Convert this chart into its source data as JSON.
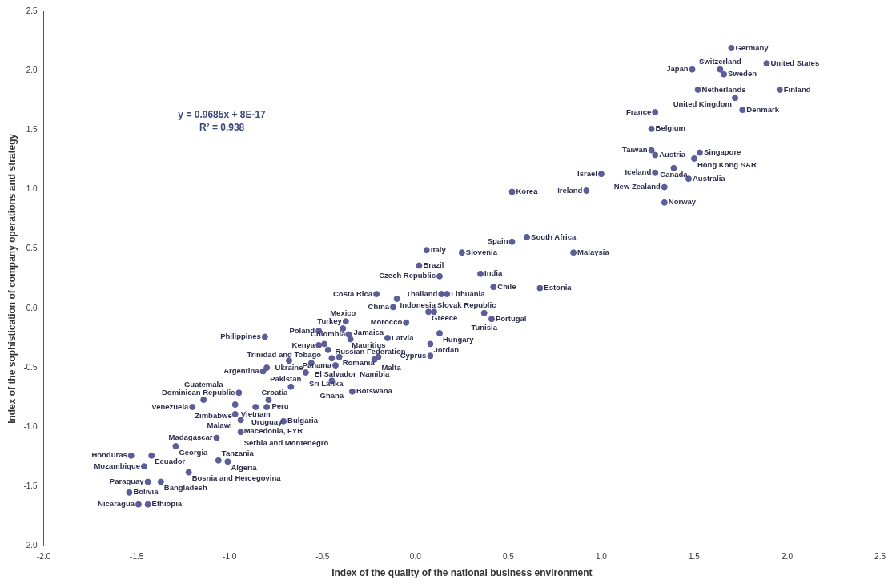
{
  "chart_data": {
    "type": "scatter",
    "xlabel": "Index of the quality of the national business environment",
    "ylabel": "Index of the sophistication of company operations and strategy",
    "xlim": [
      -2,
      2.5
    ],
    "xticks": [
      {
        "value": -2,
        "label": "-2.0"
      },
      {
        "value": -1.5,
        "label": "-1.5"
      },
      {
        "value": -1,
        "label": "-1.0"
      },
      {
        "value": -0.5,
        "label": "-0.5"
      },
      {
        "value": 0,
        "label": "0.0"
      },
      {
        "value": 0.5,
        "label": "0.5"
      },
      {
        "value": 1,
        "label": "1.0"
      },
      {
        "value": 1.5,
        "label": "1.5"
      },
      {
        "value": 2,
        "label": "2.0"
      },
      {
        "value": 2.5,
        "label": "2.5"
      }
    ],
    "ylim": [
      -2,
      2.5
    ],
    "yticks": [
      {
        "value": -2,
        "label": "-2.0"
      },
      {
        "value": -1.5,
        "label": "-1.5"
      },
      {
        "value": -1,
        "label": "-1.0"
      },
      {
        "value": -0.5,
        "label": "-0.5"
      },
      {
        "value": 0,
        "label": "0.0"
      },
      {
        "value": 0.5,
        "label": "0.5"
      },
      {
        "value": 1,
        "label": "1.0"
      },
      {
        "value": 1.5,
        "label": "1.5"
      },
      {
        "value": 2,
        "label": "2.0"
      },
      {
        "value": 2.5,
        "label": "2.5"
      }
    ],
    "grid": false,
    "legend": false,
    "marker": "circle",
    "series": [
      {
        "color": "#5b5e99",
        "x": [
          1.7,
          1.49,
          1.64,
          1.66,
          1.89,
          1.52,
          1.96,
          1.72,
          1.76,
          1.29,
          1.27,
          1.27,
          1.29,
          1.53,
          1.5,
          1.29,
          1.39,
          1.47,
          1.34,
          1.34,
          1.0,
          0.92,
          0.52,
          0.6,
          0.52,
          0.85,
          0.06,
          0.25,
          0.02,
          0.13,
          0.35,
          0.42,
          0.67,
          0.14,
          0.17,
          -0.21,
          -0.1,
          -0.12,
          0.07,
          0.1,
          0.37,
          0.41,
          -0.05,
          -0.375,
          -0.39,
          -0.36,
          -0.35,
          -0.52,
          -0.15,
          0.13,
          0.08,
          0.08,
          -0.81,
          -0.52,
          -0.49,
          -0.47,
          -0.56,
          -0.68,
          -0.8,
          -0.82,
          -0.41,
          -0.2,
          -0.22,
          -0.45,
          -0.43,
          -0.59,
          -0.45,
          -0.67,
          -0.34,
          -0.95,
          -0.97,
          -0.79,
          -0.8,
          -0.86,
          -1.14,
          -1.2,
          -0.97,
          -0.94,
          -0.71,
          -0.94,
          -1.07,
          -1.29,
          -1.53,
          -1.42,
          -1.06,
          -1.01,
          -1.46,
          -1.22,
          -1.44,
          -1.37,
          -1.54,
          -1.49,
          -1.44
        ],
        "values": [
          2.19,
          2.01,
          2.01,
          1.97,
          2.06,
          1.84,
          1.84,
          1.77,
          1.67,
          1.65,
          1.51,
          1.33,
          1.29,
          1.31,
          1.26,
          1.14,
          1.18,
          1.09,
          1.02,
          0.89,
          1.13,
          0.99,
          0.98,
          0.6,
          0.56,
          0.47,
          0.49,
          0.47,
          0.36,
          0.27,
          0.29,
          0.18,
          0.17,
          0.12,
          0.12,
          0.12,
          0.08,
          0.01,
          -0.03,
          -0.03,
          -0.04,
          -0.09,
          -0.12,
          -0.11,
          -0.17,
          -0.22,
          -0.26,
          -0.19,
          -0.25,
          -0.21,
          -0.3,
          -0.4,
          -0.24,
          -0.31,
          -0.3,
          -0.35,
          -0.46,
          -0.44,
          -0.5,
          -0.53,
          -0.41,
          -0.41,
          -0.43,
          -0.42,
          -0.48,
          -0.54,
          -0.61,
          -0.66,
          -0.7,
          -0.71,
          -0.81,
          -0.77,
          -0.83,
          -0.83,
          -0.77,
          -0.83,
          -0.89,
          -0.94,
          -0.95,
          -1.04,
          -1.09,
          -1.16,
          -1.24,
          -1.24,
          -1.28,
          -1.29,
          -1.33,
          -1.38,
          -1.46,
          -1.46,
          -1.55,
          -1.65,
          -1.65
        ]
      }
    ],
    "annotations": [
      "y = 0.9685x + 8E-17",
      "R² = 0.938",
      {
        "text": "Germany",
        "x": 1.7,
        "y": 2.19
      },
      {
        "text": "Japan",
        "x": 1.49,
        "y": 2.01
      },
      {
        "text": "Switzerland",
        "x": 1.64,
        "y": 2.01
      },
      {
        "text": "Sweden",
        "x": 1.66,
        "y": 1.97
      },
      {
        "text": "United States",
        "x": 1.89,
        "y": 2.06
      },
      {
        "text": "Netherlands",
        "x": 1.52,
        "y": 1.84
      },
      {
        "text": "Finland",
        "x": 1.96,
        "y": 1.84
      },
      {
        "text": "United Kingdom",
        "x": 1.72,
        "y": 1.77
      },
      {
        "text": "Denmark",
        "x": 1.76,
        "y": 1.67
      },
      {
        "text": "France",
        "x": 1.29,
        "y": 1.65
      },
      {
        "text": "Belgium",
        "x": 1.27,
        "y": 1.51
      },
      {
        "text": "Taiwan",
        "x": 1.27,
        "y": 1.33
      },
      {
        "text": "Austria",
        "x": 1.29,
        "y": 1.29
      },
      {
        "text": "Singapore",
        "x": 1.53,
        "y": 1.31
      },
      {
        "text": "Hong Kong SAR",
        "x": 1.5,
        "y": 1.26
      },
      {
        "text": "Iceland",
        "x": 1.29,
        "y": 1.14
      },
      {
        "text": "Canada",
        "x": 1.39,
        "y": 1.18
      },
      {
        "text": "Australia",
        "x": 1.47,
        "y": 1.09
      },
      {
        "text": "New Zealand",
        "x": 1.34,
        "y": 1.02
      },
      {
        "text": "Norway",
        "x": 1.34,
        "y": 0.89
      },
      {
        "text": "Israel",
        "x": 1.0,
        "y": 1.13
      },
      {
        "text": "Ireland",
        "x": 0.92,
        "y": 0.99
      },
      {
        "text": "Korea",
        "x": 0.52,
        "y": 0.98
      },
      {
        "text": "South Africa",
        "x": 0.6,
        "y": 0.6
      },
      {
        "text": "Spain",
        "x": 0.52,
        "y": 0.56
      },
      {
        "text": "Malaysia",
        "x": 0.85,
        "y": 0.47
      },
      {
        "text": "Italy",
        "x": 0.06,
        "y": 0.49
      },
      {
        "text": "Slovenia",
        "x": 0.25,
        "y": 0.47
      },
      {
        "text": "Brazil",
        "x": 0.02,
        "y": 0.36
      },
      {
        "text": "Czech Republic",
        "x": 0.13,
        "y": 0.27
      },
      {
        "text": "India",
        "x": 0.35,
        "y": 0.29
      },
      {
        "text": "Chile",
        "x": 0.42,
        "y": 0.18
      },
      {
        "text": "Estonia",
        "x": 0.67,
        "y": 0.17
      },
      {
        "text": "Thailand",
        "x": 0.14,
        "y": 0.12
      },
      {
        "text": "Lithuania",
        "x": 0.17,
        "y": 0.12
      },
      {
        "text": "Costa Rica",
        "x": -0.21,
        "y": 0.12
      },
      {
        "text": "Indonesia",
        "x": -0.1,
        "y": 0.08
      },
      {
        "text": "China",
        "x": -0.12,
        "y": 0.01
      },
      {
        "text": "Greece",
        "x": 0.07,
        "y": -0.03
      },
      {
        "text": "Slovak Republic",
        "x": 0.1,
        "y": -0.03
      },
      {
        "text": "Tunisia",
        "x": 0.37,
        "y": -0.04
      },
      {
        "text": "Portugal",
        "x": 0.41,
        "y": -0.09
      },
      {
        "text": "Morocco",
        "x": -0.05,
        "y": -0.12
      },
      {
        "text": "Turkey",
        "x": -0.375,
        "y": -0.11
      },
      {
        "text": "Mexico",
        "x": -0.39,
        "y": -0.17
      },
      {
        "text": "Mauritius",
        "x": -0.36,
        "y": -0.22
      },
      {
        "text": "Jamaica",
        "x": -0.35,
        "y": -0.26
      },
      {
        "text": "Poland",
        "x": -0.52,
        "y": -0.19
      },
      {
        "text": "Latvia",
        "x": -0.15,
        "y": -0.25
      },
      {
        "text": "Hungary",
        "x": 0.13,
        "y": -0.21
      },
      {
        "text": "Jordan",
        "x": 0.08,
        "y": -0.3
      },
      {
        "text": "Cyprus",
        "x": 0.08,
        "y": -0.4
      },
      {
        "text": "Philippines",
        "x": -0.81,
        "y": -0.24
      },
      {
        "text": "Kenya",
        "x": -0.52,
        "y": -0.31
      },
      {
        "text": "Trinidad and Tobago",
        "x": -0.49,
        "y": -0.3
      },
      {
        "text": "Colombia",
        "x": -0.47,
        "y": -0.35
      },
      {
        "text": "El Salvador",
        "x": -0.56,
        "y": -0.46
      },
      {
        "text": "Ukraine",
        "x": -0.68,
        "y": -0.44
      },
      {
        "text": "Pakistan",
        "x": -0.8,
        "y": -0.5
      },
      {
        "text": "Argentina",
        "x": -0.82,
        "y": -0.53
      },
      {
        "text": "Romania",
        "x": -0.41,
        "y": -0.41
      },
      {
        "text": "Malta",
        "x": -0.2,
        "y": -0.41
      },
      {
        "text": "Namibia",
        "x": -0.22,
        "y": -0.43
      },
      {
        "text": "Russian Federation",
        "x": -0.45,
        "y": -0.42
      },
      {
        "text": "Panama",
        "x": -0.43,
        "y": -0.48
      },
      {
        "text": "Sri Lanka",
        "x": -0.59,
        "y": -0.54
      },
      {
        "text": "Ghana",
        "x": -0.45,
        "y": -0.61
      },
      {
        "text": "Croatia",
        "x": -0.67,
        "y": -0.66
      },
      {
        "text": "Botswana",
        "x": -0.34,
        "y": -0.7
      },
      {
        "text": "Dominican Republic",
        "x": -0.95,
        "y": -0.71
      },
      {
        "text": "Zimbabwe",
        "x": -0.97,
        "y": -0.81
      },
      {
        "text": "Peru",
        "x": -0.79,
        "y": -0.77
      },
      {
        "text": "Uruguay",
        "x": -0.8,
        "y": -0.83
      },
      {
        "text": "Vietnam",
        "x": -0.86,
        "y": -0.83
      },
      {
        "text": "Guatemala",
        "x": -1.14,
        "y": -0.77
      },
      {
        "text": "Venezuela",
        "x": -1.2,
        "y": -0.83
      },
      {
        "text": "Malawi",
        "x": -0.97,
        "y": -0.89
      },
      {
        "text": "Macedonia, FYR",
        "x": -0.94,
        "y": -0.94
      },
      {
        "text": "Bulgaria",
        "x": -0.71,
        "y": -0.95
      },
      {
        "text": "Serbia and Montenegro",
        "x": -0.94,
        "y": -1.04
      },
      {
        "text": "Madagascar",
        "x": -1.07,
        "y": -1.09
      },
      {
        "text": "Georgia",
        "x": -1.29,
        "y": -1.16
      },
      {
        "text": "Honduras",
        "x": -1.53,
        "y": -1.24
      },
      {
        "text": "Ecuador",
        "x": -1.42,
        "y": -1.24
      },
      {
        "text": "Tanzania",
        "x": -1.06,
        "y": -1.28
      },
      {
        "text": "Algeria",
        "x": -1.01,
        "y": -1.29
      },
      {
        "text": "Mozambique",
        "x": -1.46,
        "y": -1.33
      },
      {
        "text": "Bosnia and Hercegovina",
        "x": -1.22,
        "y": -1.38
      },
      {
        "text": "Paraguay",
        "x": -1.44,
        "y": -1.46
      },
      {
        "text": "Bangladesh",
        "x": -1.37,
        "y": -1.46
      },
      {
        "text": "Bolivia",
        "x": -1.54,
        "y": -1.55
      },
      {
        "text": "Nicaragua",
        "x": -1.49,
        "y": -1.65
      },
      {
        "text": "Ethiopia",
        "x": -1.44,
        "y": -1.65
      }
    ]
  }
}
